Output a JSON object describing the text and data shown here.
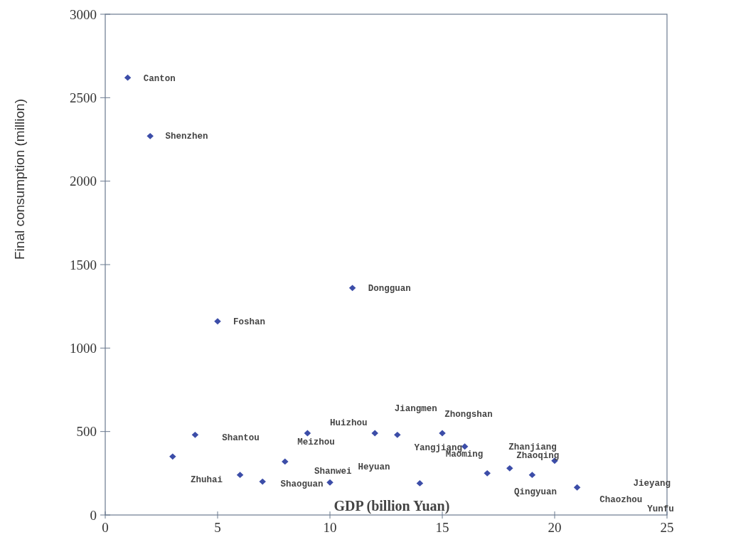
{
  "chart_data": {
    "type": "scatter",
    "xlabel": "GDP (billion Yuan)",
    "ylabel": "Final consumption (million)",
    "x": [
      1,
      2,
      3,
      4,
      5,
      6,
      7,
      8,
      9,
      10,
      11,
      12,
      13,
      14,
      15,
      16,
      17,
      18,
      19,
      20,
      21
    ],
    "series": [
      {
        "color": "#3c4da8",
        "values": [
          2620,
          2270,
          350,
          480,
          1160,
          240,
          200,
          320,
          490,
          195,
          1360,
          490,
          480,
          190,
          490,
          410,
          250,
          280,
          240,
          325,
          165
        ]
      }
    ],
    "xlim": [
      0,
      25
    ],
    "xticks": [
      0,
      5,
      10,
      15,
      20,
      25
    ],
    "ylim": [
      0,
      3000
    ],
    "yticks": [
      0,
      500,
      1000,
      1500,
      2000,
      2500,
      3000
    ],
    "grid": false,
    "marker": "diamond",
    "annotations": [
      "Canton",
      "Shenzhen",
      "Dongguan",
      "Foshan",
      "Shantou",
      "Meizhou",
      "Huizhou",
      "Jiangmen",
      "Zhongshan",
      "Yangjiang",
      "Maoming",
      "Zhanjiang",
      "Zhaoqing",
      "Qingyuan",
      "Jieyang",
      "Chaozhou",
      "Yunfu",
      "Zhuhai",
      "Shaoguan",
      "Shanwei",
      "Heyuan"
    ]
  }
}
